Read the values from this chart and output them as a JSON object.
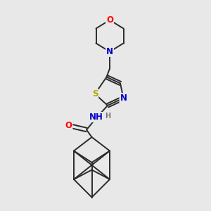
{
  "bg_color": "#e8e8e8",
  "bond_color": "#2a2a2a",
  "atom_colors": {
    "O": "#ff0000",
    "N": "#0000cc",
    "S": "#aaaa00",
    "H": "#777777",
    "C": "#2a2a2a"
  },
  "font_size_atom": 8.5,
  "line_width": 1.4
}
